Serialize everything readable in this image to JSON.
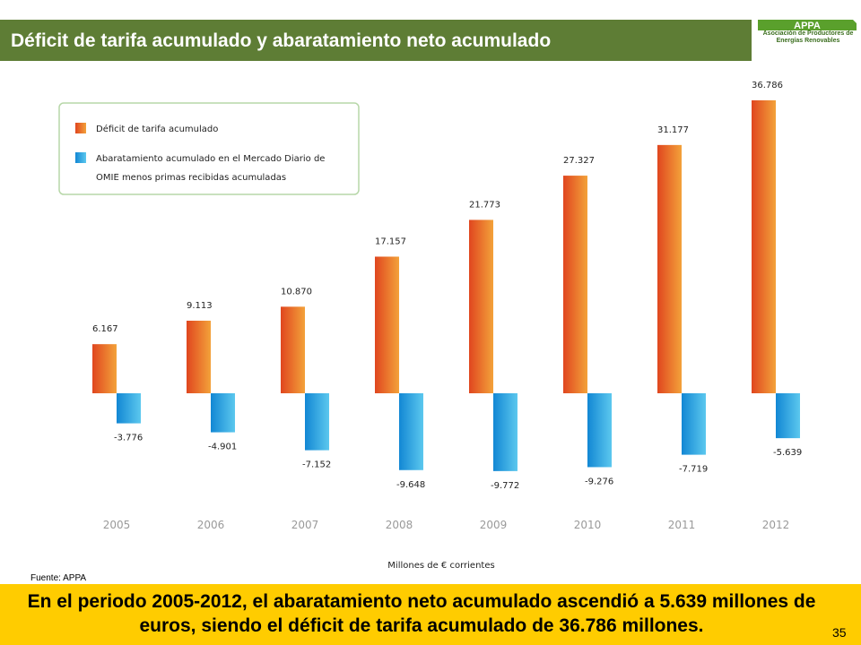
{
  "header": {
    "title": "Déficit de tarifa acumulado y abaratamiento neto acumulado"
  },
  "logo": {
    "text": "APPA",
    "name": "Asociación de Productores de Energías Renovables",
    "color": "#5aa02c"
  },
  "source": "Fuente: APPA",
  "conclusion": "En el periodo 2005-2012, el abaratamiento neto acumulado ascendió a 5.639 millones de euros, siendo el déficit de tarifa acumulado de 36.786 millones.",
  "page_number": "35",
  "colors": {
    "header_bg": "#5e7d35",
    "banner_bg": "#ffcc00",
    "deficit": "#e85f23",
    "abaratamiento": "#1fa4e0"
  },
  "chart_data": {
    "type": "bar",
    "xlabel": "Millones de € corrientes",
    "categories": [
      "2005",
      "2006",
      "2007",
      "2008",
      "2009",
      "2010",
      "2011",
      "2012"
    ],
    "series": [
      {
        "name": "Déficit de tarifa acumulado",
        "values": [
          6167,
          9113,
          10870,
          17157,
          21773,
          27327,
          31177,
          36786
        ],
        "labels": [
          "6.167",
          "9.113",
          "10.870",
          "17.157",
          "21.773",
          "27.327",
          "31.177",
          "36.786"
        ]
      },
      {
        "name": "Abaratamiento acumulado en el Mercado Diario de OMIE menos primas recibidas acumuladas",
        "values": [
          -3776,
          -4901,
          -7152,
          -9648,
          -9772,
          -9276,
          -7719,
          -5639
        ],
        "labels": [
          "-3.776",
          "-4.901",
          "-7.152",
          "-9.648",
          "-9.772",
          "-9.276",
          "-7.719",
          "-5.639"
        ]
      }
    ],
    "legend_lines": [
      [
        "Déficit de tarifa acumulado"
      ],
      [
        "Abaratamiento acumulado en el Mercado Diario de",
        "OMIE menos primas recibidas acumuladas"
      ]
    ],
    "ylim": [
      -10000,
      37000
    ],
    "grid": false,
    "legend_position": "top-left"
  }
}
